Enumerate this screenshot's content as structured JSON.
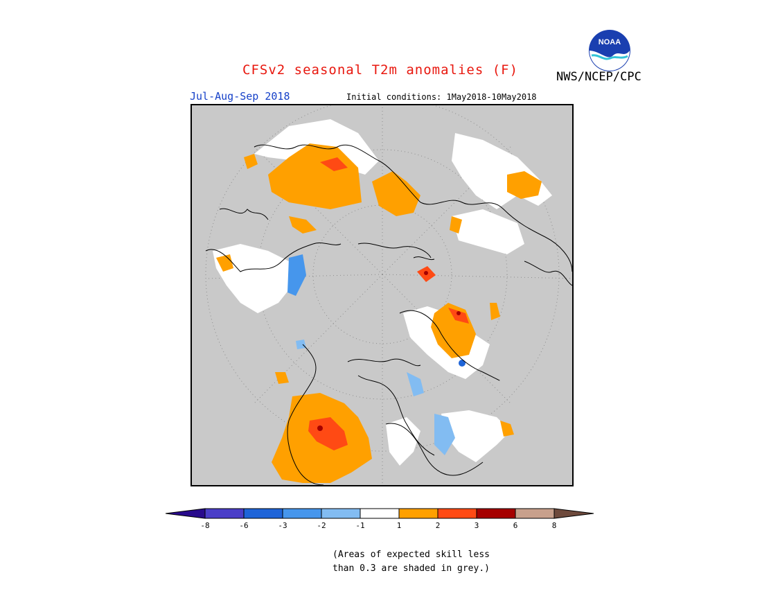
{
  "header": {
    "title": "CFSv2 seasonal T2m anomalies (F)",
    "agency": "NWS/NCEP/CPC",
    "logo_text": "NOAA",
    "season": "Jul-Aug-Sep 2018",
    "initial_conditions": "Initial conditions: 1May2018-10May2018"
  },
  "map": {
    "projection": "polar-stereographic-north",
    "skill_mask_color": "#c9c9c9",
    "anomaly_colors": {
      "neg8": "#280a8c",
      "neg6": "#4a3ec8",
      "neg3": "#1e64d8",
      "neg2": "#4696ec",
      "neg1": "#82bcf2",
      "zero": "#ffffff",
      "pos1": "#ffa000",
      "pos2": "#ff4a14",
      "pos3": "#a50000",
      "pos6": "#c8a08c",
      "pos8": "#6e4a3c"
    }
  },
  "colorbar": {
    "ticks": [
      "-8",
      "-6",
      "-3",
      "-2",
      "-1",
      "1",
      "2",
      "3",
      "6",
      "8"
    ],
    "colors": [
      "#280a8c",
      "#4a3ec8",
      "#1e64d8",
      "#4696ec",
      "#82bcf2",
      "#ffffff",
      "#ffa000",
      "#ff4a14",
      "#a50000",
      "#c8a08c",
      "#6e4a3c"
    ]
  },
  "note": {
    "line1": "(Areas of expected skill less",
    "line2": "than 0.3 are shaded in grey.)"
  }
}
